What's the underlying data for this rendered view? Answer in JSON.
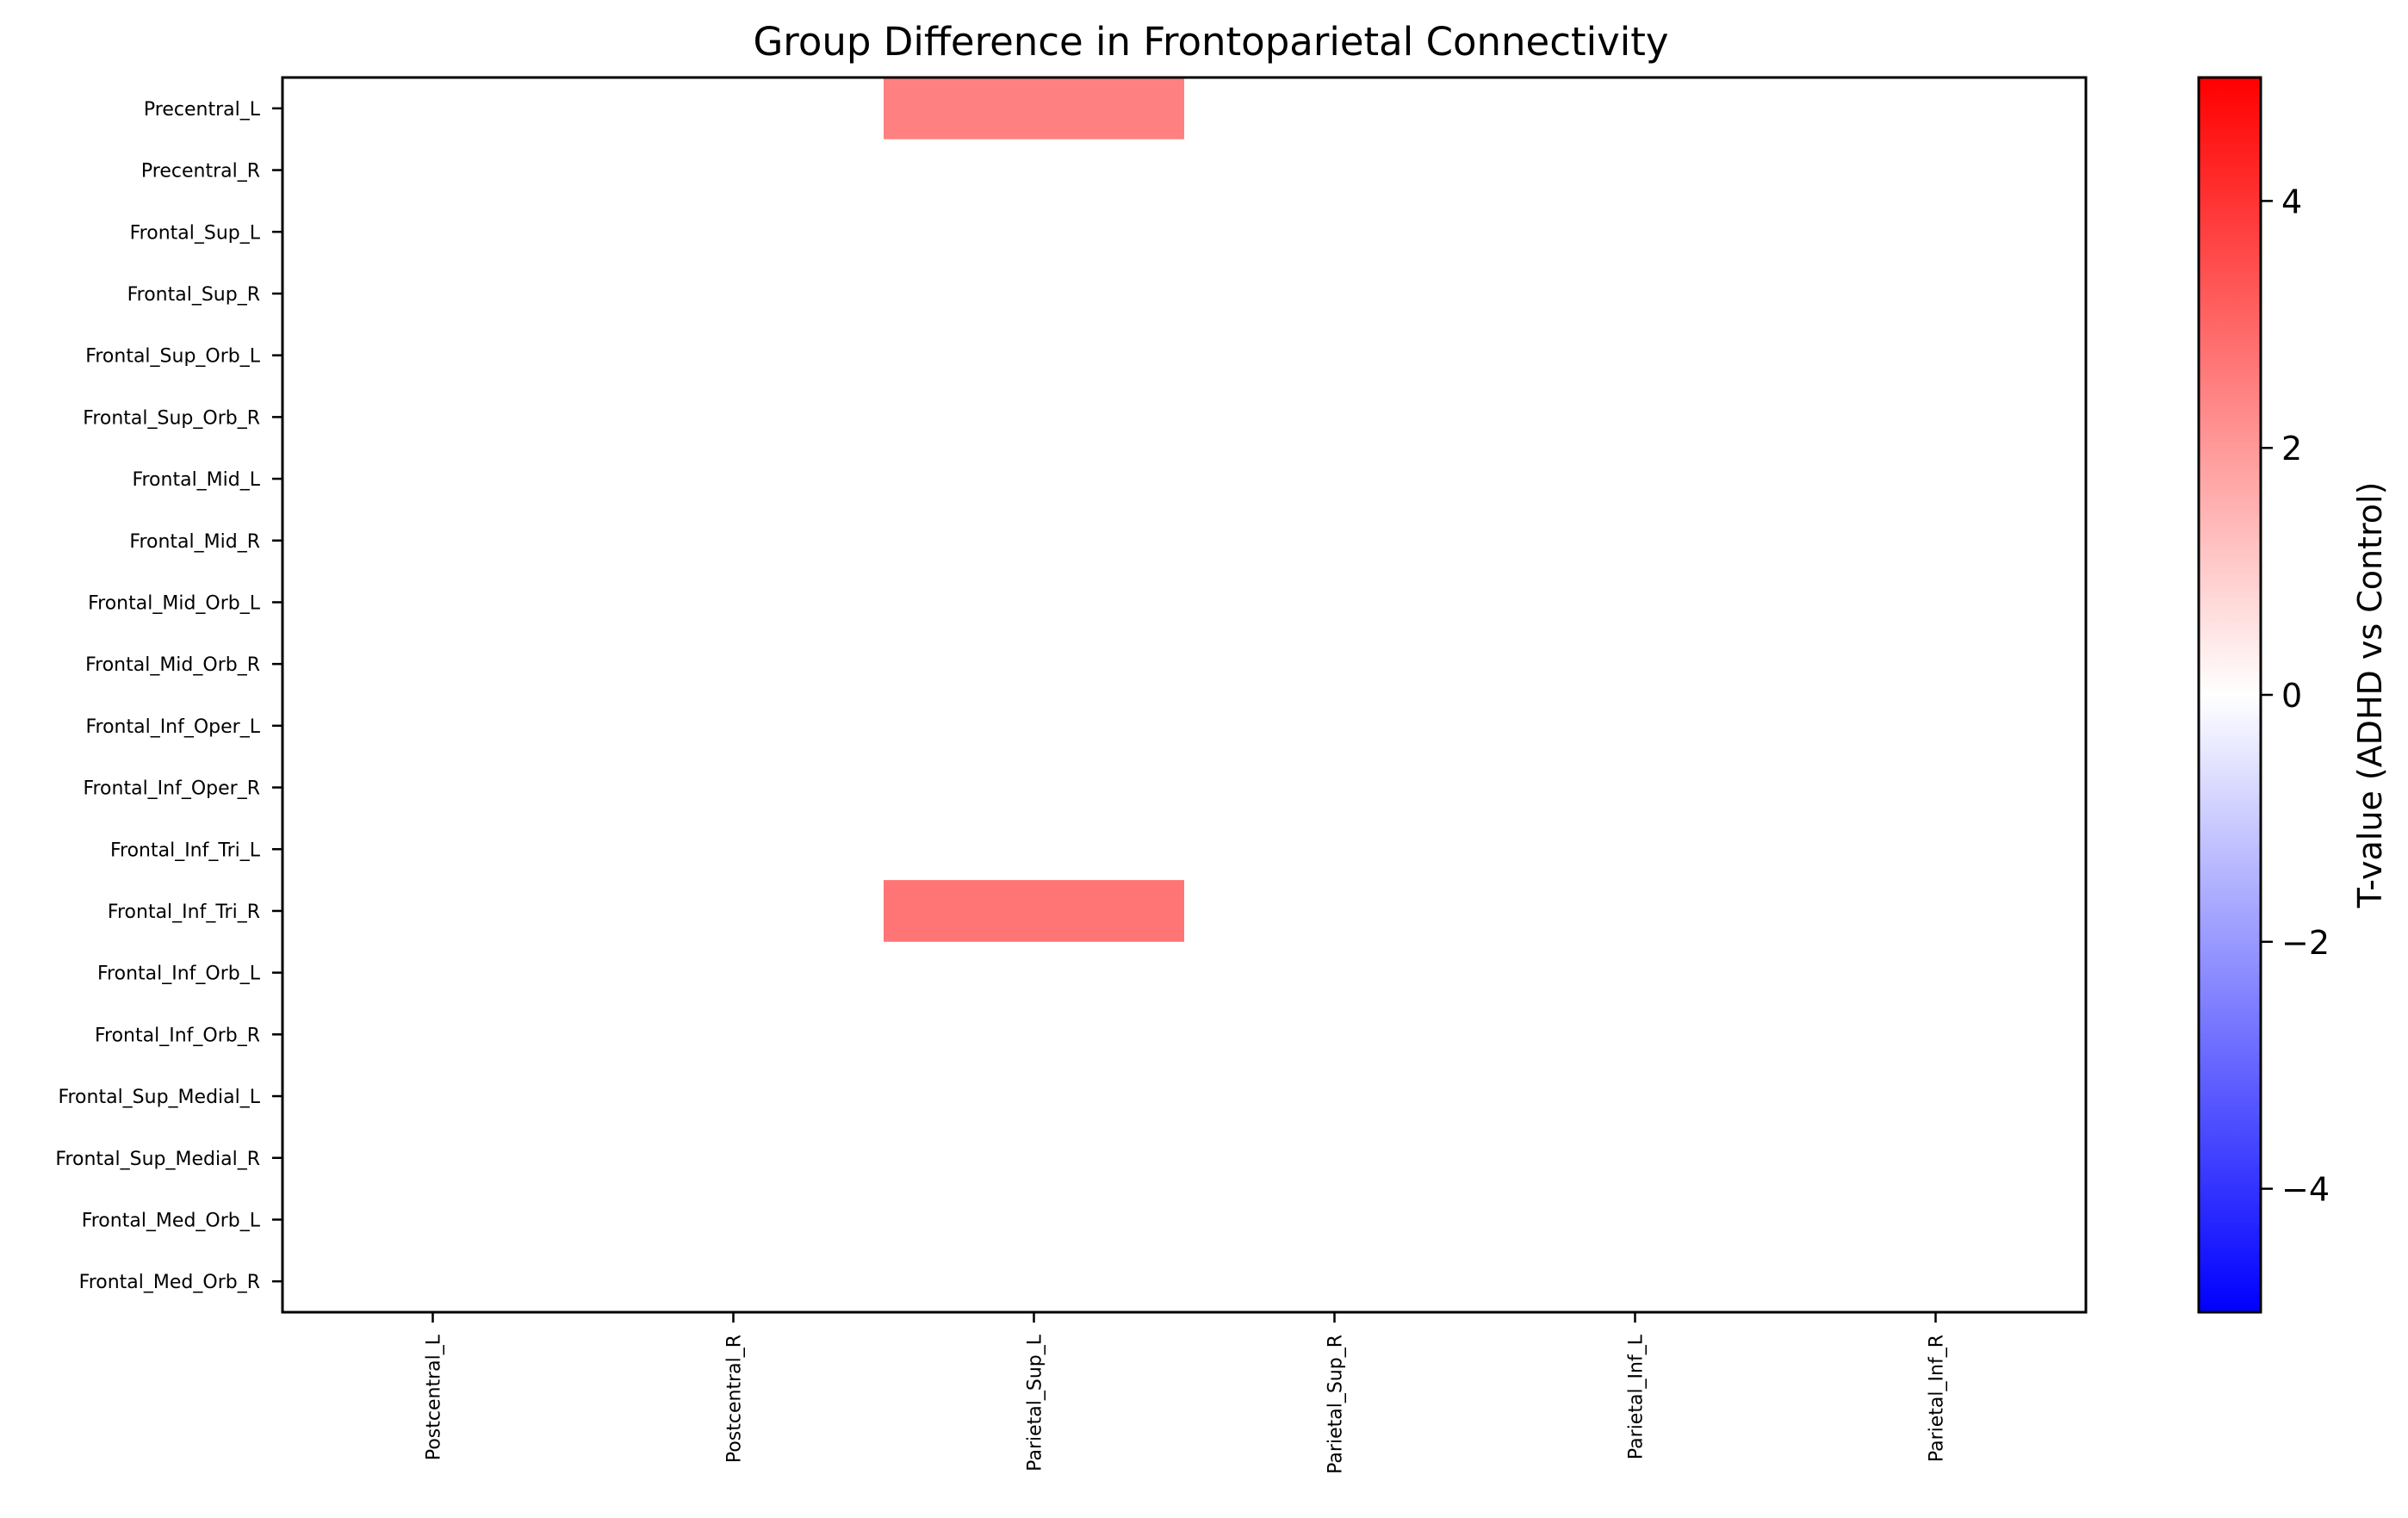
{
  "chart_data": {
    "type": "heatmap",
    "title": "Group Difference in Frontoparietal Connectivity",
    "rows": [
      "Precentral_L",
      "Precentral_R",
      "Frontal_Sup_L",
      "Frontal_Sup_R",
      "Frontal_Sup_Orb_L",
      "Frontal_Sup_Orb_R",
      "Frontal_Mid_L",
      "Frontal_Mid_R",
      "Frontal_Mid_Orb_L",
      "Frontal_Mid_Orb_R",
      "Frontal_Inf_Oper_L",
      "Frontal_Inf_Oper_R",
      "Frontal_Inf_Tri_L",
      "Frontal_Inf_Tri_R",
      "Frontal_Inf_Orb_L",
      "Frontal_Inf_Orb_R",
      "Frontal_Sup_Medial_L",
      "Frontal_Sup_Medial_R",
      "Frontal_Med_Orb_L",
      "Frontal_Med_Orb_R"
    ],
    "columns": [
      "Postcentral_L",
      "Postcentral_R",
      "Parietal_Sup_L",
      "Parietal_Sup_R",
      "Parietal_Inf_L",
      "Parietal_Inf_R"
    ],
    "values": [
      [
        0,
        0,
        2.5,
        0,
        0,
        0
      ],
      [
        0,
        0,
        0,
        0,
        0,
        0
      ],
      [
        0,
        0,
        0,
        0,
        0,
        0
      ],
      [
        0,
        0,
        0,
        0,
        0,
        0
      ],
      [
        0,
        0,
        0,
        0,
        0,
        0
      ],
      [
        0,
        0,
        0,
        0,
        0,
        0
      ],
      [
        0,
        0,
        0,
        0,
        0,
        0
      ],
      [
        0,
        0,
        0,
        0,
        0,
        0
      ],
      [
        0,
        0,
        0,
        0,
        0,
        0
      ],
      [
        0,
        0,
        0,
        0,
        0,
        0
      ],
      [
        0,
        0,
        0,
        0,
        0,
        0
      ],
      [
        0,
        0,
        0,
        0,
        0,
        0
      ],
      [
        0,
        0,
        0,
        0,
        0,
        0
      ],
      [
        0,
        0,
        2.7,
        0,
        0,
        0
      ],
      [
        0,
        0,
        0,
        0,
        0,
        0
      ],
      [
        0,
        0,
        0,
        0,
        0,
        0
      ],
      [
        0,
        0,
        0,
        0,
        0,
        0
      ],
      [
        0,
        0,
        0,
        0,
        0,
        0
      ],
      [
        0,
        0,
        0,
        0,
        0,
        0
      ],
      [
        0,
        0,
        0,
        0,
        0,
        0
      ]
    ],
    "colorbar": {
      "label": "T-value (ADHD vs Control)",
      "range": [
        -5,
        5
      ],
      "ticks": [
        4,
        2,
        0,
        -2,
        -4
      ],
      "tick_labels": [
        "4",
        "2",
        "0",
        "−2",
        "−4"
      ],
      "colormap": "bwr",
      "colors": {
        "low": "#0000ff",
        "mid": "#ffffff",
        "high": "#ff0000"
      }
    }
  }
}
